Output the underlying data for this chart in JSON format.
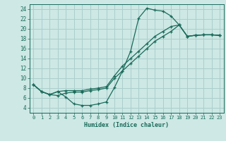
{
  "xlabel": "Humidex (Indice chaleur)",
  "bg_color": "#cde8e5",
  "grid_color": "#aacfcc",
  "line_color": "#1a6b5a",
  "xlim": [
    -0.5,
    23.5
  ],
  "ylim": [
    3.0,
    25.0
  ],
  "xticks": [
    0,
    1,
    2,
    3,
    4,
    5,
    6,
    7,
    8,
    9,
    10,
    11,
    12,
    13,
    14,
    15,
    16,
    17,
    18,
    19,
    20,
    21,
    22,
    23
  ],
  "yticks": [
    4,
    6,
    8,
    10,
    12,
    14,
    16,
    18,
    20,
    22,
    24
  ],
  "curve1_x": [
    0,
    1,
    2,
    3,
    4,
    5,
    6,
    7,
    8,
    9,
    10,
    11,
    12,
    13,
    14,
    15,
    16,
    17,
    18,
    19,
    20,
    21,
    22,
    23
  ],
  "curve1_y": [
    8.7,
    7.3,
    6.7,
    7.3,
    6.2,
    4.8,
    4.5,
    4.5,
    4.8,
    5.2,
    8.1,
    11.5,
    15.5,
    22.2,
    24.2,
    23.8,
    23.6,
    22.6,
    20.8,
    18.5,
    18.7,
    18.8,
    18.8,
    18.7
  ],
  "curve2_x": [
    0,
    1,
    2,
    3,
    4,
    5,
    6,
    7,
    8,
    9,
    10,
    11,
    12,
    13,
    14,
    15,
    16,
    17,
    18,
    19,
    20,
    21,
    22,
    23
  ],
  "curve2_y": [
    8.7,
    7.3,
    6.7,
    7.3,
    7.5,
    7.5,
    7.5,
    7.8,
    8.0,
    8.3,
    10.5,
    12.5,
    14.0,
    15.5,
    17.0,
    18.5,
    19.5,
    20.5,
    20.8,
    18.5,
    18.7,
    18.8,
    18.8,
    18.7
  ],
  "curve3_x": [
    0,
    1,
    2,
    3,
    4,
    5,
    6,
    7,
    8,
    9,
    10,
    11,
    12,
    13,
    14,
    15,
    16,
    17,
    18,
    19,
    20,
    21,
    22,
    23
  ],
  "curve3_y": [
    8.7,
    7.3,
    6.7,
    6.5,
    7.0,
    7.2,
    7.2,
    7.5,
    7.7,
    8.0,
    10.0,
    11.5,
    13.0,
    14.5,
    16.0,
    17.5,
    18.5,
    19.5,
    20.8,
    18.5,
    18.7,
    18.8,
    18.8,
    18.7
  ]
}
